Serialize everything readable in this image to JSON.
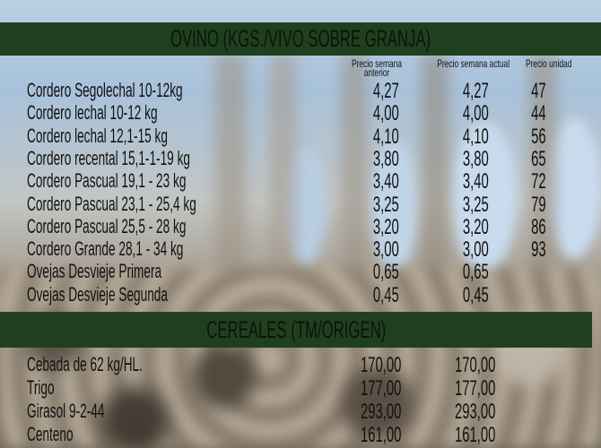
{
  "ovino": {
    "title": "OVINO (KGS./VIVO SOBRE GRANJA)",
    "headers": [
      "Precio semana anterior",
      "Precio semana actual",
      "Precio unidad"
    ],
    "rows": [
      {
        "name": "Cordero Segolechal 10-12kg",
        "prev": "4,27",
        "curr": "4,27",
        "unit": "47"
      },
      {
        "name": "Cordero lechal 10-12 kg",
        "prev": "4,00",
        "curr": "4,00",
        "unit": "44"
      },
      {
        "name": "Cordero lechal 12,1-15 kg",
        "prev": "4,10",
        "curr": "4,10",
        "unit": "56"
      },
      {
        "name": "Cordero recental 15,1-1-19 kg",
        "prev": "3,80",
        "curr": "3,80",
        "unit": "65"
      },
      {
        "name": "Cordero Pascual 19,1 - 23 kg",
        "prev": "3,40",
        "curr": "3,40",
        "unit": "72"
      },
      {
        "name": "Cordero Pascual 23,1 - 25,4 kg",
        "prev": "3,25",
        "curr": "3,25",
        "unit": "79"
      },
      {
        "name": "Cordero Pascual 25,5 - 28 kg",
        "prev": "3,20",
        "curr": "3,20",
        "unit": "86"
      },
      {
        "name": "Cordero Grande 28,1 - 34 kg",
        "prev": "3,00",
        "curr": "3,00",
        "unit": "93"
      },
      {
        "name": "Ovejas Desvieje Primera",
        "prev": "0,65",
        "curr": "0,65",
        "unit": ""
      },
      {
        "name": "Ovejas Desvieje Segunda",
        "prev": "0,45",
        "curr": "0,45",
        "unit": ""
      }
    ]
  },
  "cereales": {
    "title": "CEREALES (TM/ORIGEN)",
    "rows": [
      {
        "name": "Cebada de 62 kg/HL.",
        "prev": "170,00",
        "curr": "170,00"
      },
      {
        "name": "Trigo",
        "prev": "177,00",
        "curr": "177,00"
      },
      {
        "name": "Girasol 9-2-44",
        "prev": "293,00",
        "curr": "293,00"
      },
      {
        "name": "Centeno",
        "prev": "161,00",
        "curr": "161,00"
      }
    ]
  },
  "colors": {
    "header_bar": "#1f401e",
    "text": "#111111"
  }
}
